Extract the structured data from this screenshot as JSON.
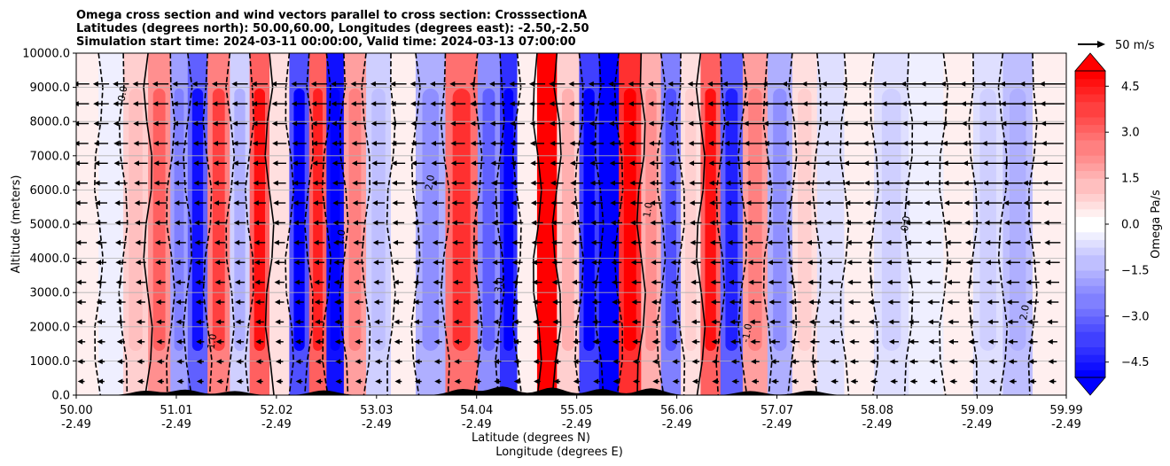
{
  "chart_data": {
    "type": "heatmap",
    "title_lines": [
      "Omega cross section and wind vectors parallel to cross section: CrosssectionA",
      "Latitudes (degrees north): 50.00,60.00, Longitudes (degrees east): -2.50,-2.50",
      "Simulation start time: 2024-03-11 00:00:00, Valid time: 2024-03-13 07:00:00"
    ],
    "ylabel": "Altitude (meters)",
    "xlabel_lines": [
      "Latitude (degrees N)",
      "Longitude (degrees E)"
    ],
    "ylim": [
      0,
      10000
    ],
    "xlim": [
      50.0,
      59.99
    ],
    "y_ticks": [
      0,
      1000,
      2000,
      3000,
      4000,
      5000,
      6000,
      7000,
      8000,
      9000,
      10000
    ],
    "y_tick_labels": [
      "0.0",
      "1000.0",
      "2000.0",
      "3000.0",
      "4000.0",
      "5000.0",
      "6000.0",
      "7000.0",
      "8000.0",
      "9000.0",
      "10000.0"
    ],
    "x_ticks": [
      50.0,
      51.01,
      52.02,
      53.03,
      54.04,
      55.05,
      56.06,
      57.07,
      58.08,
      59.09,
      59.99
    ],
    "x_tick_labels_lat": [
      "50.00",
      "51.01",
      "52.02",
      "53.03",
      "54.04",
      "55.05",
      "56.06",
      "57.07",
      "58.08",
      "59.09",
      "59.99"
    ],
    "x_tick_labels_lon": [
      "-2.49",
      "-2.49",
      "-2.49",
      "-2.49",
      "-2.49",
      "-2.49",
      "-2.49",
      "-2.49",
      "-2.49",
      "-2.49",
      "-2.49"
    ],
    "grid": "horizontal",
    "colorbar": {
      "label": "Omega Pa/s",
      "min": -5.0,
      "max": 5.0,
      "extend": "both",
      "ticks": [
        4.5,
        3.0,
        1.5,
        0.0,
        -1.5,
        -3.0,
        -4.5
      ],
      "tick_labels": [
        "4.5",
        "3.0",
        "1.5",
        "0.0",
        "−1.5",
        "−3.0",
        "−4.5"
      ],
      "cmap": "bwr",
      "low_color": "#0000ff",
      "high_color": "#ff0000"
    },
    "quiver_key": {
      "label": "50 m/s",
      "value": 50
    },
    "omega_bands": [
      {
        "lat": 50.1,
        "value": 0.3
      },
      {
        "lat": 50.35,
        "value": -0.4
      },
      {
        "lat": 50.6,
        "value": 0.8
      },
      {
        "lat": 50.85,
        "value": 2.2
      },
      {
        "lat": 51.05,
        "value": -1.8
      },
      {
        "lat": 51.2,
        "value": -3.2
      },
      {
        "lat": 51.45,
        "value": 2.6
      },
      {
        "lat": 51.65,
        "value": -1.0
      },
      {
        "lat": 51.85,
        "value": 3.2
      },
      {
        "lat": 52.05,
        "value": 0.5
      },
      {
        "lat": 52.25,
        "value": -3.5
      },
      {
        "lat": 52.45,
        "value": 3.0
      },
      {
        "lat": 52.6,
        "value": -4.6
      },
      {
        "lat": 52.8,
        "value": 1.8
      },
      {
        "lat": 53.05,
        "value": -0.8
      },
      {
        "lat": 53.3,
        "value": 0.4
      },
      {
        "lat": 53.55,
        "value": -1.5
      },
      {
        "lat": 53.9,
        "value": 2.8
      },
      {
        "lat": 54.2,
        "value": -2.2
      },
      {
        "lat": 54.35,
        "value": -4.2
      },
      {
        "lat": 54.55,
        "value": 0.4
      },
      {
        "lat": 54.75,
        "value": 5.5
      },
      {
        "lat": 54.95,
        "value": 1.0
      },
      {
        "lat": 55.2,
        "value": -3.8
      },
      {
        "lat": 55.35,
        "value": -5.2
      },
      {
        "lat": 55.6,
        "value": 4.2
      },
      {
        "lat": 55.8,
        "value": 1.6
      },
      {
        "lat": 56.0,
        "value": -2.4
      },
      {
        "lat": 56.2,
        "value": 0.6
      },
      {
        "lat": 56.4,
        "value": 3.2
      },
      {
        "lat": 56.6,
        "value": -3.0
      },
      {
        "lat": 56.85,
        "value": 1.8
      },
      {
        "lat": 57.1,
        "value": -1.6
      },
      {
        "lat": 57.35,
        "value": 0.6
      },
      {
        "lat": 57.6,
        "value": -0.5
      },
      {
        "lat": 57.9,
        "value": 0.3
      },
      {
        "lat": 58.2,
        "value": -0.6
      },
      {
        "lat": 58.6,
        "value": -0.3
      },
      {
        "lat": 58.9,
        "value": 0.2
      },
      {
        "lat": 59.2,
        "value": -0.6
      },
      {
        "lat": 59.5,
        "value": -1.1
      },
      {
        "lat": 59.8,
        "value": 0.4
      }
    ],
    "contour_labels": [
      "0.0",
      "-1.0",
      "1.0",
      "2.0",
      "3.0",
      "1.0",
      "-1.0",
      "0.0",
      "2.0"
    ]
  }
}
